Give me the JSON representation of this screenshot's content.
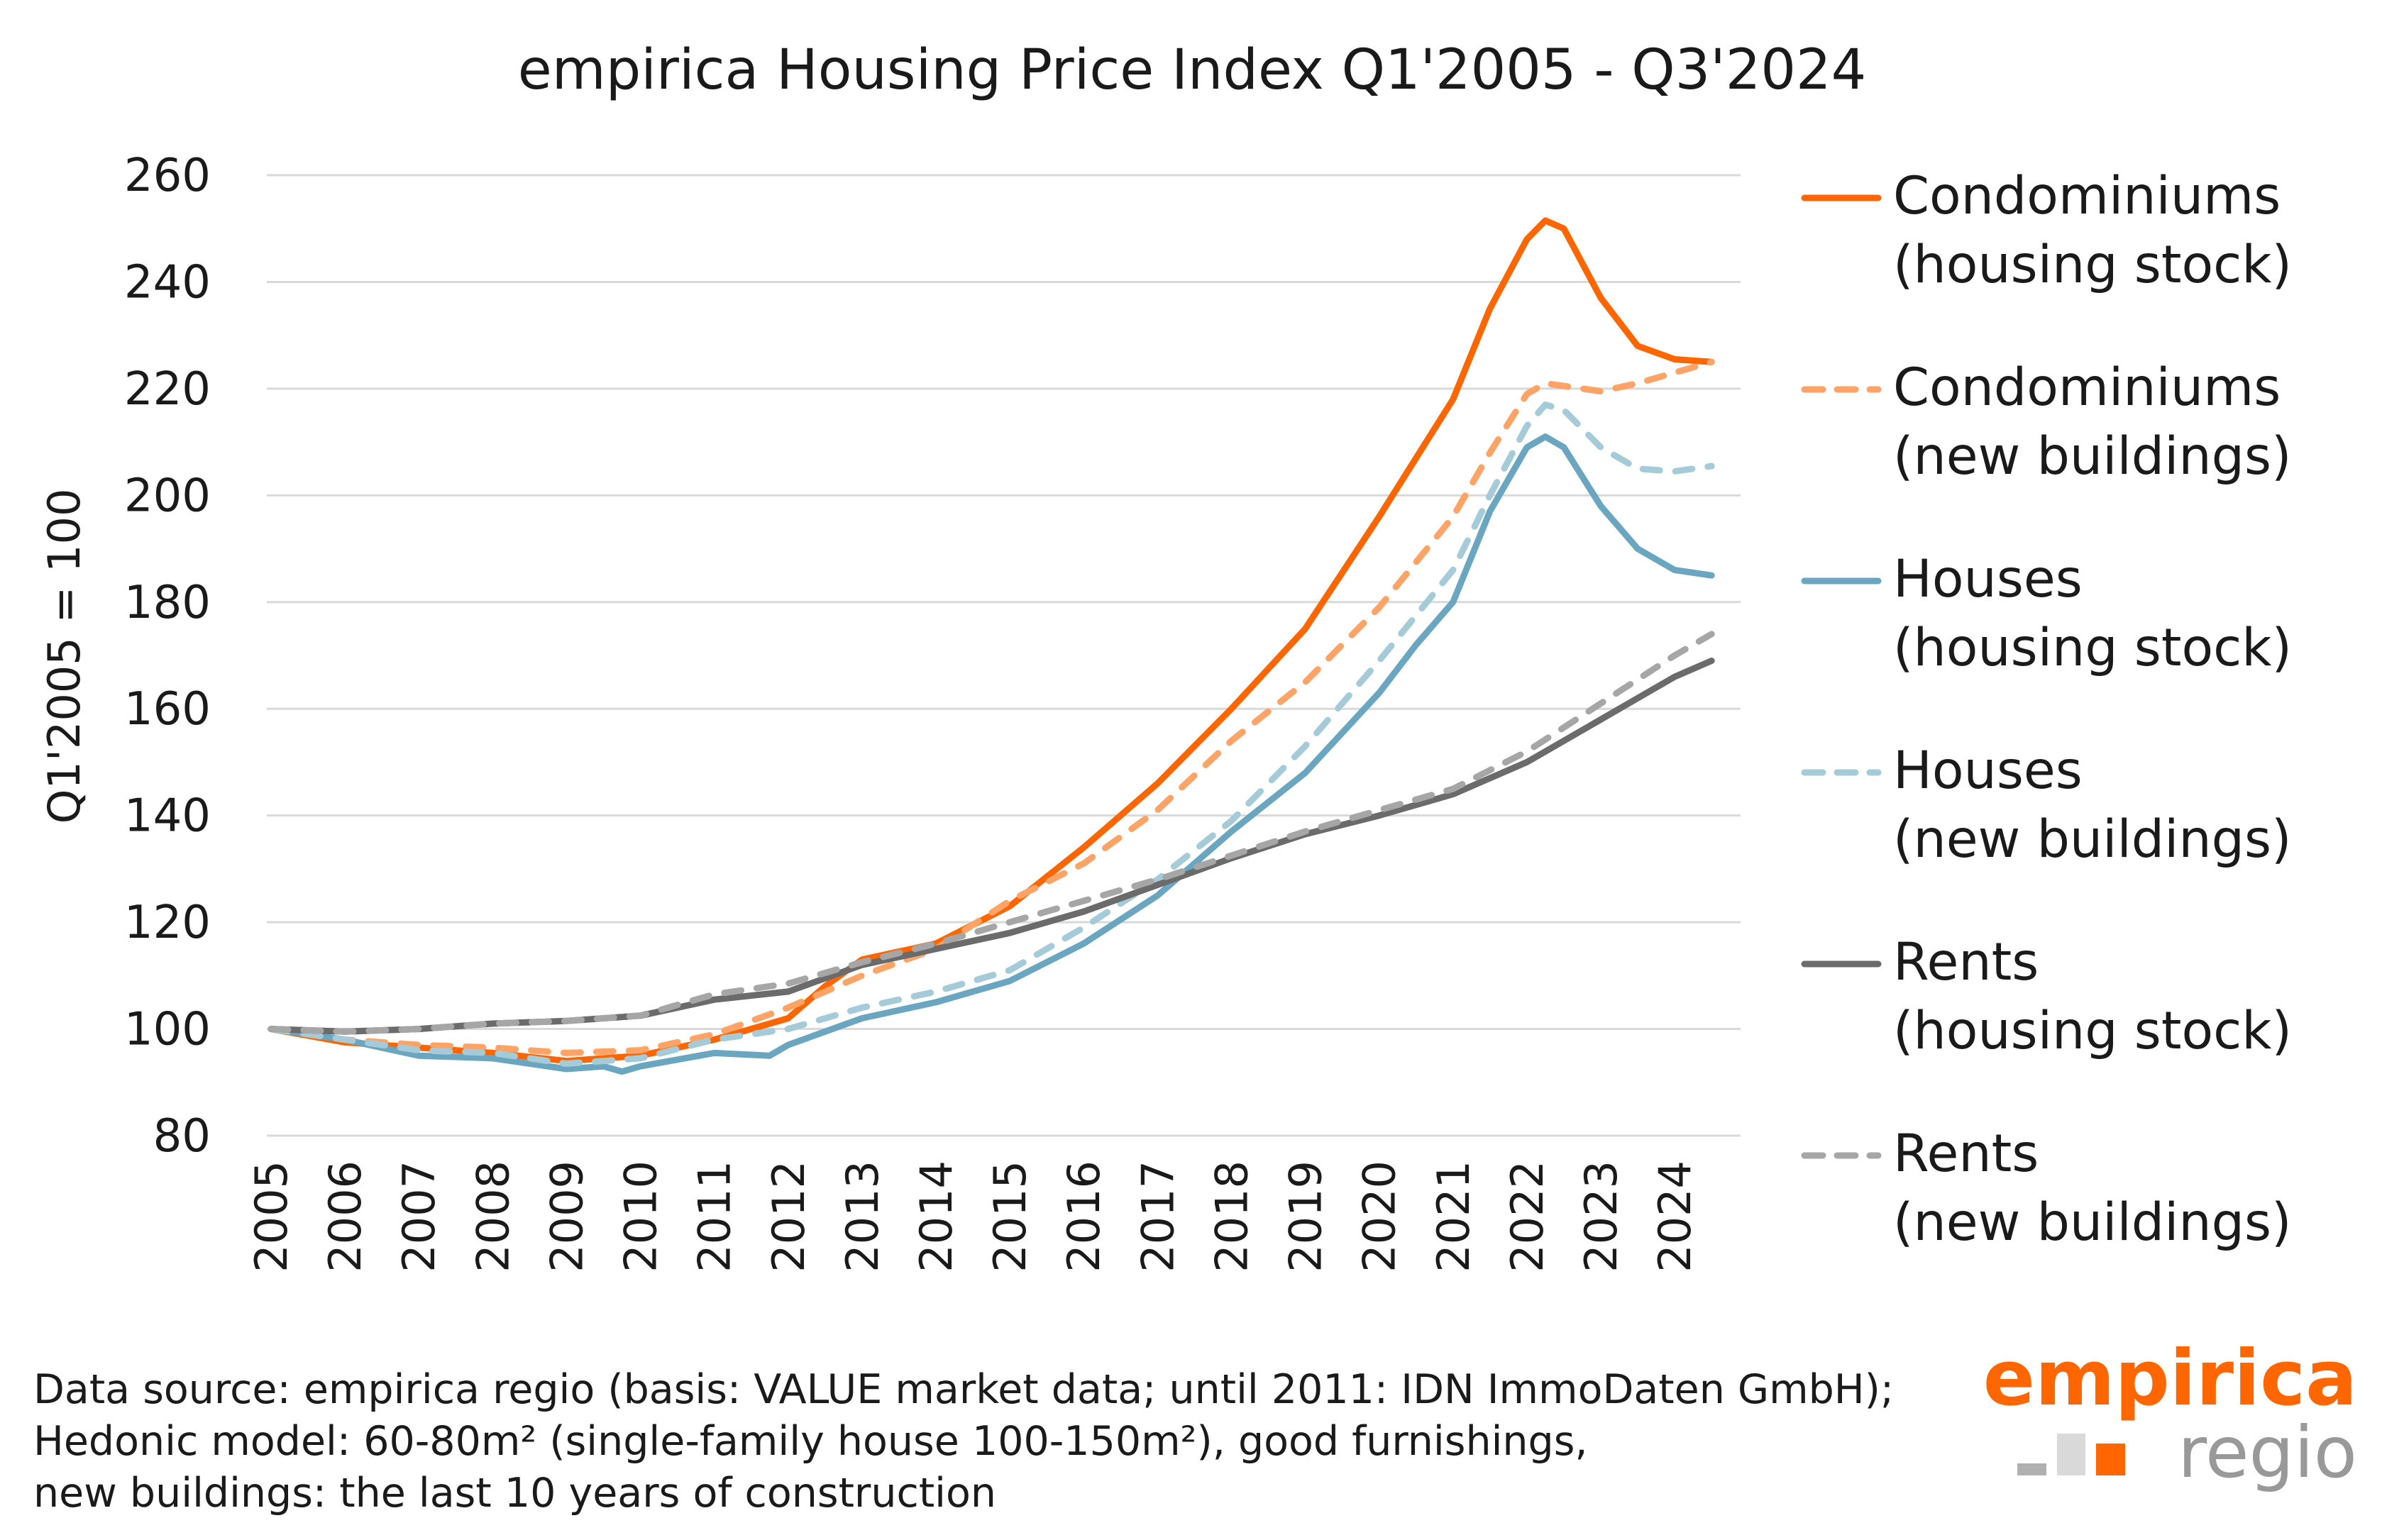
{
  "chart_data": {
    "type": "line",
    "title": "empirica Housing Price Index Q1'2005 - Q3'2024",
    "xlabel": "",
    "ylabel": "Q1'2005 = 100",
    "xlim": [
      2005,
      2024.5
    ],
    "ylim": [
      80,
      260
    ],
    "yticks": [
      80,
      100,
      120,
      140,
      160,
      180,
      200,
      220,
      240,
      260
    ],
    "xticks": [
      "2005",
      "2006",
      "2007",
      "2008",
      "2009",
      "2010",
      "2011",
      "2012",
      "2013",
      "2014",
      "2015",
      "2016",
      "2017",
      "2018",
      "2019",
      "2020",
      "2021",
      "2022",
      "2023",
      "2024"
    ],
    "grid": "horizontal",
    "legend_placement": "right",
    "series": [
      {
        "name": "Condominiums",
        "name2": "(housing stock)",
        "color": "#ff6600",
        "dash": false,
        "x": [
          2005,
          2006,
          2007,
          2008,
          2009,
          2010,
          2011,
          2012,
          2012.5,
          2013,
          2014,
          2015,
          2016,
          2017,
          2018,
          2019,
          2020,
          2021,
          2021.5,
          2022,
          2022.25,
          2022.5,
          2023,
          2023.5,
          2024,
          2024.5
        ],
        "y": [
          100,
          97.5,
          96.5,
          95.5,
          94,
          95,
          98,
          102,
          108,
          113,
          116,
          123,
          134,
          146,
          160,
          175,
          196,
          218,
          235,
          248,
          251.5,
          250,
          237,
          228,
          225.5,
          225
        ]
      },
      {
        "name": "Condominiums",
        "name2": "(new buildings)",
        "color": "#ffa366",
        "dash": true,
        "x": [
          2005,
          2006,
          2007,
          2008,
          2009,
          2010,
          2011,
          2012,
          2013,
          2014,
          2015,
          2016,
          2017,
          2018,
          2019,
          2020,
          2021,
          2021.5,
          2022,
          2022.25,
          2023,
          2023.5,
          2024,
          2024.5
        ],
        "y": [
          100,
          98,
          97,
          96.5,
          95.5,
          96,
          99,
          104,
          110,
          115,
          124,
          131,
          141,
          154,
          165,
          179,
          196,
          208,
          219,
          221,
          219.5,
          221,
          223,
          225
        ]
      },
      {
        "name": "Houses",
        "name2": "(housing stock)",
        "color": "#6aa6bf",
        "dash": false,
        "x": [
          2005,
          2006,
          2007,
          2008,
          2009,
          2009.5,
          2009.75,
          2010,
          2011,
          2011.75,
          2012,
          2013,
          2014,
          2015,
          2016,
          2017,
          2018,
          2019,
          2020,
          2020.5,
          2021,
          2021.5,
          2022,
          2022.25,
          2022.5,
          2023,
          2023.5,
          2024,
          2024.5
        ],
        "y": [
          100,
          98,
          95,
          94.5,
          92.5,
          93,
          92,
          93,
          95.5,
          95,
          97,
          102,
          105,
          109,
          116,
          125,
          137,
          148,
          163,
          172,
          180,
          197,
          209,
          211,
          209,
          198,
          190,
          186,
          185
        ]
      },
      {
        "name": "Houses",
        "name2": "(new buildings)",
        "color": "#a6cbd8",
        "dash": true,
        "x": [
          2005,
          2006,
          2007,
          2008,
          2009,
          2010,
          2011,
          2012,
          2013,
          2014,
          2015,
          2016,
          2017,
          2018,
          2019,
          2020,
          2021,
          2021.5,
          2022,
          2022.25,
          2022.5,
          2023,
          2023.5,
          2024,
          2024.5
        ],
        "y": [
          100,
          98,
          96,
          95.5,
          93.5,
          94.5,
          98,
          100,
          104,
          107,
          111,
          119,
          128,
          139,
          153,
          169,
          186,
          200,
          213,
          217,
          216,
          209,
          205,
          204.5,
          205.5
        ]
      },
      {
        "name": "Rents",
        "name2": "(housing stock)",
        "color": "#6b6b6b",
        "dash": false,
        "x": [
          2005,
          2006,
          2007,
          2008,
          2009,
          2010,
          2011,
          2012,
          2013,
          2014,
          2015,
          2016,
          2017,
          2018,
          2019,
          2020,
          2021,
          2022,
          2023,
          2024,
          2024.5
        ],
        "y": [
          100,
          99.5,
          100,
          101,
          101.5,
          102.5,
          105.5,
          107,
          112,
          115,
          118,
          122,
          127,
          132,
          136.5,
          140,
          144,
          150,
          158,
          166,
          169
        ]
      },
      {
        "name": "Rents",
        "name2": "(new buildings)",
        "color": "#a6a6a6",
        "dash": true,
        "x": [
          2005,
          2006,
          2007,
          2008,
          2009,
          2010,
          2011,
          2012,
          2013,
          2014,
          2015,
          2016,
          2017,
          2018,
          2019,
          2020,
          2021,
          2022,
          2023,
          2024,
          2024.5
        ],
        "y": [
          100,
          99.5,
          100,
          101,
          101.5,
          102.5,
          106.5,
          108.5,
          112.5,
          116,
          120,
          124,
          128,
          132.5,
          137,
          141,
          145,
          152,
          161,
          170,
          174
        ]
      }
    ]
  },
  "footnote": [
    "Data source: empirica regio (basis: VALUE market data; until 2011: IDN ImmoDaten GmbH);",
    "Hedonic model: 60-80m² (single-family house 100-150m²), good furnishings,",
    "new buildings: the last 10 years of construction"
  ],
  "logo": {
    "line1": "empirica",
    "line2": "regio",
    "orange": "#ff6600",
    "gray": "#999999"
  }
}
